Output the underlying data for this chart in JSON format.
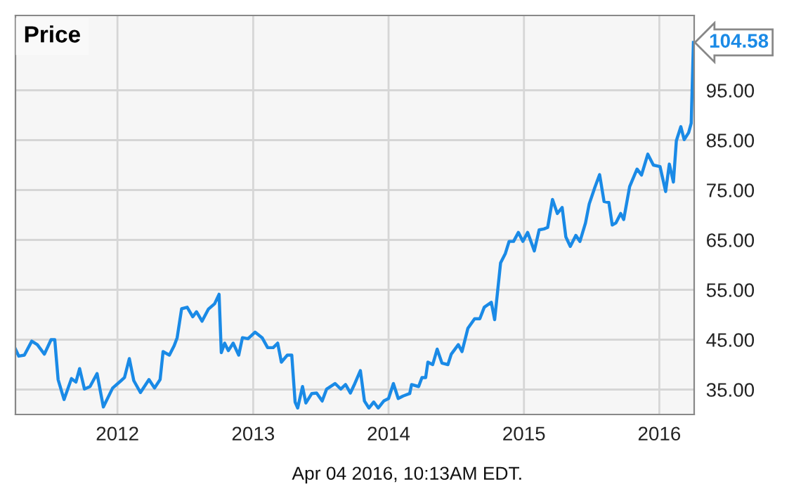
{
  "chart_data": {
    "type": "line",
    "title": "Price",
    "xlim": [
      "2011-04-01",
      "2016-04-04"
    ],
    "ylim": [
      30,
      110
    ],
    "xticks": [
      {
        "value": "2012-01-01",
        "label": "2012"
      },
      {
        "value": "2013-01-01",
        "label": "2013"
      },
      {
        "value": "2014-01-01",
        "label": "2014"
      },
      {
        "value": "2015-01-01",
        "label": "2015"
      },
      {
        "value": "2016-01-01",
        "label": "2016"
      }
    ],
    "yticks": [
      {
        "value": 35,
        "label": "35.00"
      },
      {
        "value": 45,
        "label": "45.00"
      },
      {
        "value": 55,
        "label": "55.00"
      },
      {
        "value": 65,
        "label": "65.00"
      },
      {
        "value": 75,
        "label": "75.00"
      },
      {
        "value": 85,
        "label": "85.00"
      },
      {
        "value": 95,
        "label": "95.00"
      }
    ],
    "grid": true,
    "legend": false,
    "series": [
      {
        "color": "#1a8ae6",
        "x": [
          "2011-04-01",
          "2011-04-10",
          "2011-04-25",
          "2011-05-15",
          "2011-05-30",
          "2011-06-18",
          "2011-07-06",
          "2011-07-16",
          "2011-07-25",
          "2011-08-10",
          "2011-08-30",
          "2011-09-11",
          "2011-09-21",
          "2011-10-04",
          "2011-10-19",
          "2011-11-07",
          "2011-11-24",
          "2011-12-19",
          "2012-01-11",
          "2012-01-20",
          "2012-02-02",
          "2012-02-14",
          "2012-03-03",
          "2012-03-26",
          "2012-04-10",
          "2012-04-25",
          "2012-05-03",
          "2012-05-20",
          "2012-06-02",
          "2012-06-10",
          "2012-06-22",
          "2012-07-07",
          "2012-07-22",
          "2012-08-01",
          "2012-08-16",
          "2012-09-02",
          "2012-09-19",
          "2012-10-01",
          "2012-10-07",
          "2012-10-16",
          "2012-10-26",
          "2012-11-08",
          "2012-11-23",
          "2012-12-03",
          "2012-12-18",
          "2013-01-06",
          "2013-01-25",
          "2013-02-09",
          "2013-02-24",
          "2013-03-08",
          "2013-03-18",
          "2013-04-03",
          "2013-04-15",
          "2013-04-24",
          "2013-05-01",
          "2013-05-14",
          "2013-05-23",
          "2013-06-08",
          "2013-06-21",
          "2013-07-06",
          "2013-07-18",
          "2013-08-10",
          "2013-08-25",
          "2013-09-07",
          "2013-09-20",
          "2013-10-02",
          "2013-10-17",
          "2013-10-28",
          "2013-11-09",
          "2013-11-22",
          "2013-12-04",
          "2013-12-19",
          "2014-01-01",
          "2014-01-14",
          "2014-01-27",
          "2014-02-09",
          "2014-02-27",
          "2014-03-04",
          "2014-03-23",
          "2014-04-01",
          "2014-04-11",
          "2014-04-17",
          "2014-04-30",
          "2014-05-12",
          "2014-05-25",
          "2014-06-10",
          "2014-06-19",
          "2014-07-08",
          "2014-07-18",
          "2014-08-03",
          "2014-08-21",
          "2014-09-04",
          "2014-09-16",
          "2014-10-05",
          "2014-10-14",
          "2014-10-30",
          "2014-11-12",
          "2014-11-22",
          "2014-12-04",
          "2014-12-17",
          "2014-12-29",
          "2015-01-11",
          "2015-01-29",
          "2015-02-11",
          "2015-02-24",
          "2015-03-06",
          "2015-03-19",
          "2015-04-01",
          "2015-04-14",
          "2015-04-24",
          "2015-05-06",
          "2015-05-21",
          "2015-06-01",
          "2015-06-16",
          "2015-06-26",
          "2015-07-11",
          "2015-07-24",
          "2015-08-05",
          "2015-08-18",
          "2015-08-27",
          "2015-09-06",
          "2015-09-19",
          "2015-09-27",
          "2015-10-13",
          "2015-11-02",
          "2015-11-14",
          "2015-12-01",
          "2015-12-16",
          "2016-01-03",
          "2016-01-18",
          "2016-01-28",
          "2016-02-08",
          "2016-02-16",
          "2016-02-28",
          "2016-03-08",
          "2016-03-20",
          "2016-03-27",
          "2016-04-02"
        ],
        "values": [
          43.1,
          41.7,
          41.9,
          44.7,
          44.0,
          42.1,
          45.0,
          45.0,
          37.0,
          33.0,
          37.2,
          36.5,
          39.2,
          35.1,
          35.6,
          38.2,
          31.5,
          35.3,
          36.8,
          37.4,
          41.2,
          36.8,
          34.4,
          37.0,
          35.3,
          37.0,
          42.6,
          41.9,
          43.8,
          45.4,
          51.2,
          51.5,
          49.6,
          50.6,
          48.7,
          51.1,
          52.2,
          54.1,
          42.4,
          44.3,
          42.8,
          44.3,
          41.9,
          45.4,
          45.2,
          46.5,
          45.4,
          43.4,
          43.4,
          44.3,
          40.5,
          41.9,
          41.9,
          32.5,
          31.3,
          35.6,
          32.3,
          34.2,
          34.3,
          32.7,
          35.1,
          36.2,
          35.1,
          36.0,
          34.3,
          36.2,
          38.8,
          32.7,
          31.3,
          32.5,
          31.3,
          32.7,
          33.2,
          36.2,
          33.2,
          33.7,
          34.2,
          36.0,
          35.6,
          37.4,
          37.4,
          40.5,
          40.0,
          43.1,
          40.3,
          40.0,
          42.1,
          44.0,
          42.6,
          47.3,
          49.2,
          49.2,
          51.5,
          52.5,
          49.0,
          60.4,
          62.3,
          64.7,
          64.7,
          66.5,
          64.7,
          66.5,
          62.8,
          67.0,
          67.2,
          67.5,
          73.1,
          70.3,
          71.5,
          65.6,
          63.7,
          65.9,
          64.7,
          68.4,
          72.2,
          75.5,
          78.1,
          72.7,
          72.5,
          68.0,
          68.4,
          70.3,
          69.1,
          75.7,
          79.2,
          78.0,
          82.2,
          80.0,
          79.7,
          74.7,
          80.2,
          76.6,
          84.9,
          87.7,
          85.1,
          86.5,
          88.4,
          104.58
        ]
      }
    ],
    "annotations": [
      {
        "text": "104.58",
        "x": "2016-04-02",
        "y": 104.58
      },
      "Apr 04 2016, 10:13AM EDT."
    ]
  }
}
